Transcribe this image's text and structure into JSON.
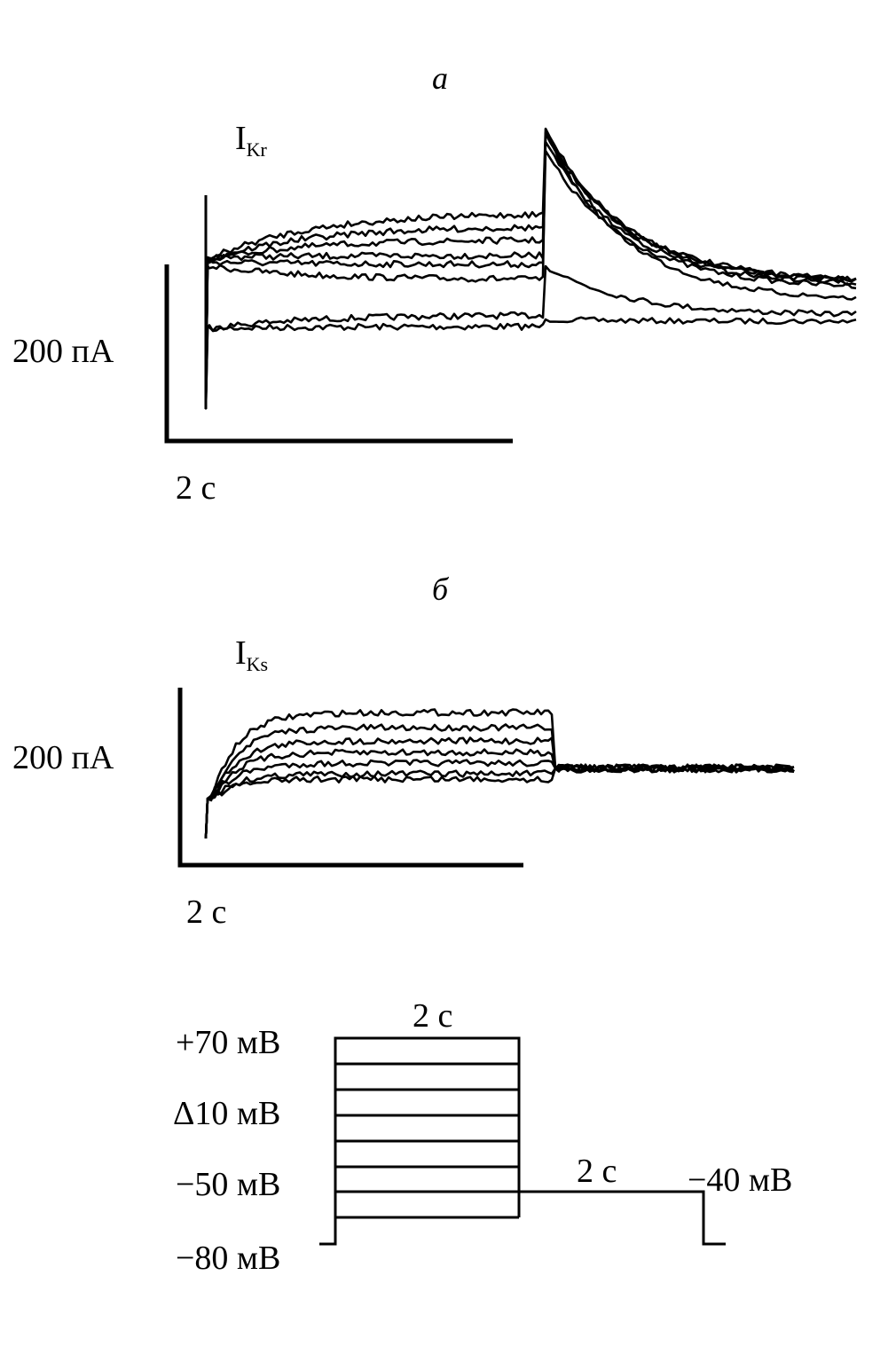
{
  "panels": [
    {
      "label": "а",
      "current": {
        "symbol": "I",
        "subscript": "Kr"
      },
      "scale_y": "200 пА",
      "scale_x": "2 с"
    },
    {
      "label": "б",
      "current": {
        "symbol": "I",
        "subscript": "Ks"
      },
      "scale_y": "200 пА",
      "scale_x": "2 с"
    }
  ],
  "protocol": {
    "step_duration": "2 с",
    "top_level": "+70 мВ",
    "increment": "Δ10 мВ",
    "bottom_level": "−50 мВ",
    "tail_duration": "2 с",
    "tail_level": "−40 мВ",
    "holding_level": "−80 мВ"
  }
}
